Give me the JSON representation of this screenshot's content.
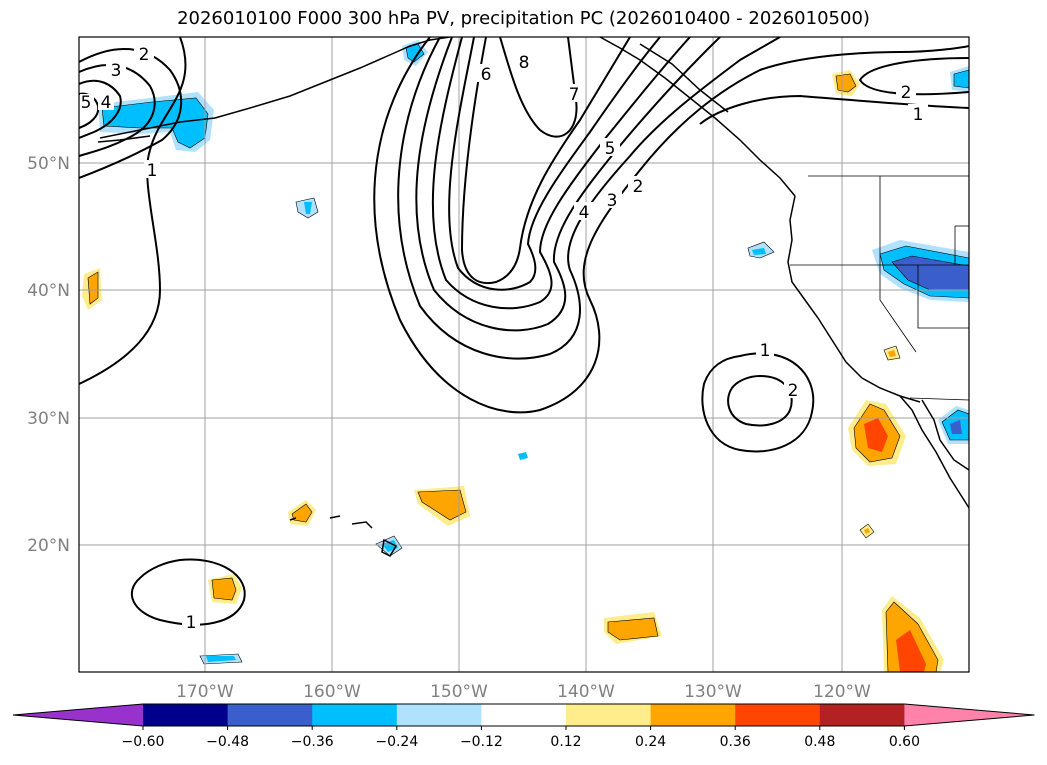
{
  "title": "2026010100 F000 300 hPa PV, precipitation PC (2026010400 - 2026010500)",
  "map": {
    "lat_labels": [
      "50°N",
      "40°N",
      "30°N",
      "20°N"
    ],
    "lon_labels": [
      "170°W",
      "160°W",
      "150°W",
      "140°W",
      "130°W",
      "120°W"
    ],
    "pv_contour_labels": {
      "nw_2": "2",
      "nw_3": "3",
      "nw_4": "4",
      "nw_5": "5",
      "nw_1": "1",
      "trough_6": "6",
      "trough_8": "8",
      "trough_7": "7",
      "trough_5": "5",
      "trough_4": "4",
      "trough_3": "3",
      "trough_2": "2",
      "ne_2": "2",
      "ne_1": "1",
      "low_1": "1",
      "low_2": "2",
      "sw_1": "1"
    }
  },
  "colorbar": {
    "ticks": [
      "−0.60",
      "−0.48",
      "−0.36",
      "−0.24",
      "−0.12",
      "0.12",
      "0.24",
      "0.36",
      "0.48",
      "0.60"
    ],
    "colors": [
      "#9932cc",
      "#00008b",
      "#3a5fcd",
      "#00bfff",
      "#b0e2ff",
      "#ffffff",
      "#ffec8b",
      "#ffa500",
      "#ff4500",
      "#b22222",
      "#ff82ab"
    ]
  }
}
